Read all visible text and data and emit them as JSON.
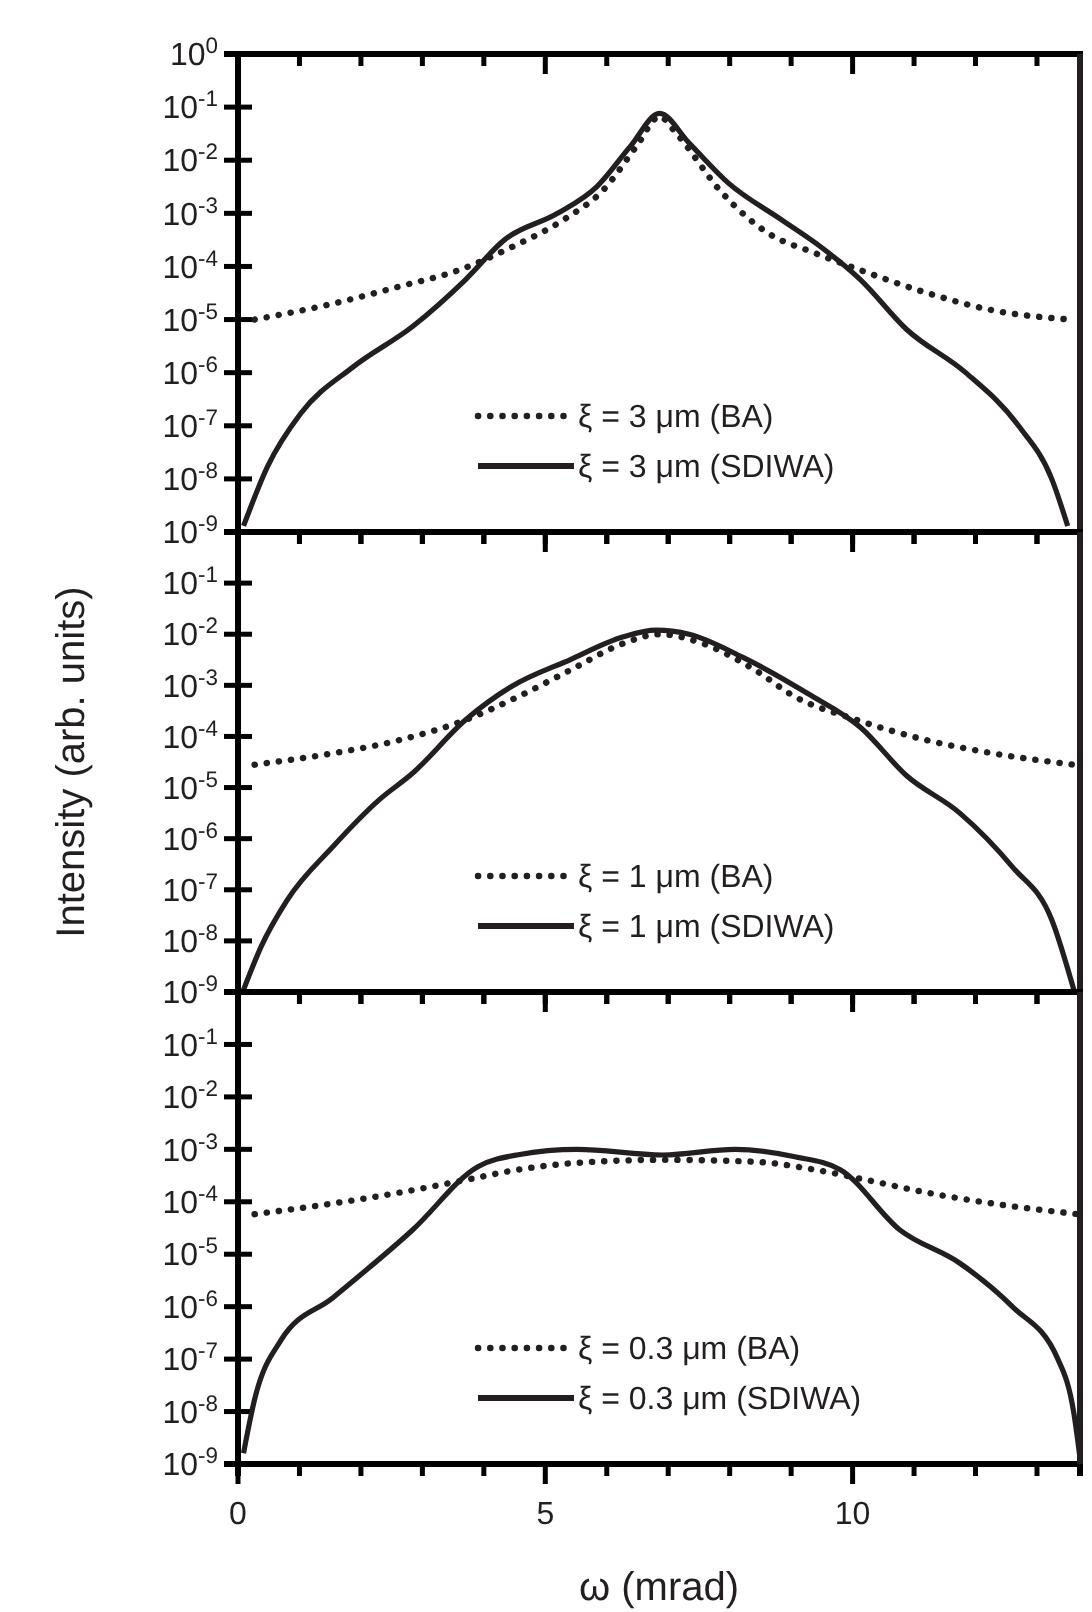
{
  "chart_data": [
    {
      "type": "line",
      "ylim": [
        1e-09,
        1
      ],
      "log": "y",
      "xlim": [
        0,
        13.7
      ],
      "tick_labels": "y",
      "legend": "bottom",
      "xticks": [
        {
          "value": 0,
          "label": null
        },
        {
          "value": 1,
          "label": null
        },
        {
          "value": 2,
          "label": null
        },
        {
          "value": 3,
          "label": null
        },
        {
          "value": 4,
          "label": null
        },
        {
          "value": 5,
          "label": null
        },
        {
          "value": 6,
          "label": null
        },
        {
          "value": 7,
          "label": null
        },
        {
          "value": 8,
          "label": null
        },
        {
          "value": 9,
          "label": null
        },
        {
          "value": 10,
          "label": null
        },
        {
          "value": 11,
          "label": null
        },
        {
          "value": 12,
          "label": null
        },
        {
          "value": 13,
          "label": null
        }
      ],
      "yticks": [
        {
          "value": 1e-09,
          "label": "10$^{-9}$"
        },
        {
          "value": 1e-08,
          "label": "10$^{-8}$"
        },
        {
          "value": 1e-07,
          "label": "10$^{-7}$"
        },
        {
          "value": 1e-06,
          "label": "10$^{-6}$"
        },
        {
          "value": 1e-05,
          "label": "10$^{-5}$"
        },
        {
          "value": 0.0001,
          "label": "10$^{-4}$"
        },
        {
          "value": 0.001,
          "label": "10$^{-3}$"
        },
        {
          "value": 0.01,
          "label": "10$^{-2}$"
        },
        {
          "value": 0.1,
          "label": "10$^{-1}$"
        },
        {
          "value": 1,
          "label": "10$^{0}$"
        }
      ],
      "series": [
        {
          "name": "ξ = 3 μm (BA)",
          "color": "#231f20",
          "line_style": "dotted",
          "x": [
            0.27,
            1.55,
            2.63,
            3.59,
            4.45,
            5.3,
            5.95,
            6.48,
            6.86,
            7.13,
            7.88,
            8.63,
            9.38,
            10.13,
            11.2,
            12.27,
            13.56
          ],
          "values": [
            1e-05,
            2e-05,
            4.2e-05,
            8.5e-05,
            0.00023,
            0.00076,
            0.0028,
            0.018,
            0.066,
            0.032,
            0.0024,
            0.00042,
            0.00018,
            8.5e-05,
            3.2e-05,
            1.5e-05,
            1e-05
          ]
        },
        {
          "name": "ξ = 3 μm (SDIWA)",
          "color": "#231f20",
          "line_style": "solid",
          "x": [
            0.09,
            0.48,
            1.02,
            1.88,
            2.84,
            3.7,
            4.34,
            5.2,
            5.84,
            6.38,
            6.86,
            7.34,
            7.98,
            8.84,
            9.49,
            10.13,
            10.88,
            11.84,
            12.7,
            13.24,
            13.5
          ],
          "values": [
            1.3e-09,
            1.7e-08,
            1.7e-07,
            1.3e-06,
            7.4e-06,
            5.6e-05,
            0.00032,
            0.001,
            0.0032,
            0.018,
            0.076,
            0.021,
            0.0037,
            0.00076,
            0.00023,
            5.6e-05,
            6.5e-06,
            1e-06,
            1e-07,
            1e-08,
            1.3e-09
          ]
        }
      ]
    },
    {
      "type": "line",
      "ylim": [
        1e-09,
        1
      ],
      "log": "y",
      "xlim": [
        0,
        13.7
      ],
      "tick_labels": "y",
      "legend": "bottom",
      "ylabel": "Intensity (arb. units)",
      "xticks": [
        {
          "value": 0,
          "label": null
        },
        {
          "value": 1,
          "label": null
        },
        {
          "value": 2,
          "label": null
        },
        {
          "value": 3,
          "label": null
        },
        {
          "value": 4,
          "label": null
        },
        {
          "value": 5,
          "label": null
        },
        {
          "value": 6,
          "label": null
        },
        {
          "value": 7,
          "label": null
        },
        {
          "value": 8,
          "label": null
        },
        {
          "value": 9,
          "label": null
        },
        {
          "value": 10,
          "label": null
        },
        {
          "value": 11,
          "label": null
        },
        {
          "value": 12,
          "label": null
        },
        {
          "value": 13,
          "label": null
        }
      ],
      "yticks": [
        {
          "value": 1e-09,
          "label": "10$^{-9}$"
        },
        {
          "value": 1e-08,
          "label": "10$^{-8}$"
        },
        {
          "value": 1e-07,
          "label": "10$^{-7}$"
        },
        {
          "value": 1e-06,
          "label": "10$^{-6}$"
        },
        {
          "value": 1e-05,
          "label": "10$^{-5}$"
        },
        {
          "value": 0.0001,
          "label": "10$^{-4}$"
        },
        {
          "value": 0.001,
          "label": "10$^{-3}$"
        },
        {
          "value": 0.01,
          "label": "10$^{-2}$"
        },
        {
          "value": 0.1,
          "label": "10$^{-1}$"
        }
      ],
      "series": [
        {
          "name": "ξ = 1 μm (BA)",
          "color": "#231f20",
          "line_style": "dotted",
          "x": [
            0.27,
            1.55,
            2.63,
            3.7,
            4.56,
            5.41,
            6.27,
            6.86,
            7.56,
            8.41,
            9.06,
            10.02,
            11.2,
            12.27,
            13.6
          ],
          "values": [
            2.8e-05,
            4.7e-05,
            8.5e-05,
            0.00021,
            0.0006,
            0.002,
            0.0066,
            0.01,
            0.0066,
            0.002,
            0.0006,
            0.00022,
            8.5e-05,
            4.7e-05,
            2.8e-05
          ]
        },
        {
          "name": "ξ = 1 μm (SDIWA)",
          "color": "#231f20",
          "line_style": "solid",
          "x": [
            0.09,
            0.38,
            0.8,
            1.55,
            2.3,
            2.84,
            3.7,
            4.45,
            5.41,
            6.27,
            6.8,
            7.34,
            8.2,
            9.27,
            10.13,
            10.88,
            11.74,
            12.6,
            13.24,
            13.6
          ],
          "values": [
            1.1e-09,
            7.9e-09,
            6.3e-08,
            7.1e-07,
            5.8e-06,
            1.9e-05,
            0.00021,
            0.00095,
            0.0032,
            0.0089,
            0.012,
            0.01,
            0.0036,
            0.00069,
            0.00015,
            1.7e-05,
            3.2e-06,
            2.8e-07,
            2.6e-08,
            1.1e-09
          ]
        }
      ]
    },
    {
      "type": "line",
      "ylim": [
        1e-09,
        1
      ],
      "log": "y",
      "xlim": [
        0,
        13.7
      ],
      "legend": "bottom",
      "xlabel": "ω (mrad)",
      "xticks": [
        0,
        {
          "value": 1,
          "label": null
        },
        {
          "value": 2,
          "label": null
        },
        {
          "value": 3,
          "label": null
        },
        {
          "value": 4,
          "label": null
        },
        5,
        {
          "value": 6,
          "label": null
        },
        {
          "value": 7,
          "label": null
        },
        {
          "value": 8,
          "label": null
        },
        {
          "value": 9,
          "label": null
        },
        10,
        {
          "value": 11,
          "label": null
        },
        {
          "value": 12,
          "label": null
        },
        {
          "value": 13,
          "label": null
        }
      ],
      "yticks": [
        {
          "value": 1e-09,
          "label": "10$^{-9}$"
        },
        {
          "value": 1e-08,
          "label": "10$^{-8}$"
        },
        {
          "value": 1e-07,
          "label": "10$^{-7}$"
        },
        {
          "value": 1e-06,
          "label": "10$^{-6}$"
        },
        {
          "value": 1e-05,
          "label": "10$^{-5}$"
        },
        {
          "value": 0.0001,
          "label": "10$^{-4}$"
        },
        {
          "value": 0.001,
          "label": "10$^{-3}$"
        },
        {
          "value": 0.01,
          "label": "10$^{-2}$"
        },
        {
          "value": 0.1,
          "label": "10$^{-1}$"
        }
      ],
      "series": [
        {
          "name": "ξ = 0.3 μm (BA)",
          "color": "#231f20",
          "line_style": "dotted",
          "x": [
            0.27,
            1.55,
            2.63,
            3.7,
            4.56,
            5.41,
            6.91,
            8.41,
            9.38,
            10.23,
            11.2,
            12.27,
            13.67
          ],
          "values": [
            5.8e-05,
            9.3e-05,
            0.00015,
            0.00026,
            0.00041,
            0.00054,
            0.00063,
            0.00058,
            0.00041,
            0.00026,
            0.00015,
            9.3e-05,
            5.8e-05
          ]
        },
        {
          "name": "ξ = 0.3 μm (SDIWA)",
          "color": "#231f20",
          "line_style": "solid",
          "x": [
            0.09,
            0.27,
            0.7,
            1.55,
            2.84,
            3.91,
            4.56,
            5.52,
            6.91,
            8.09,
            9.06,
            9.8,
            10.77,
            11.74,
            12.6,
            13.34,
            13.6,
            13.7
          ],
          "values": [
            1.6e-09,
            1.7e-08,
            2.3e-07,
            1.5e-06,
            2.9e-05,
            0.00047,
            0.00079,
            0.001,
            0.00078,
            0.001,
            0.00072,
            0.00041,
            2.9e-05,
            6.8e-06,
            1e-06,
            1e-07,
            9.3e-09,
            1.3e-09
          ]
        }
      ]
    }
  ]
}
